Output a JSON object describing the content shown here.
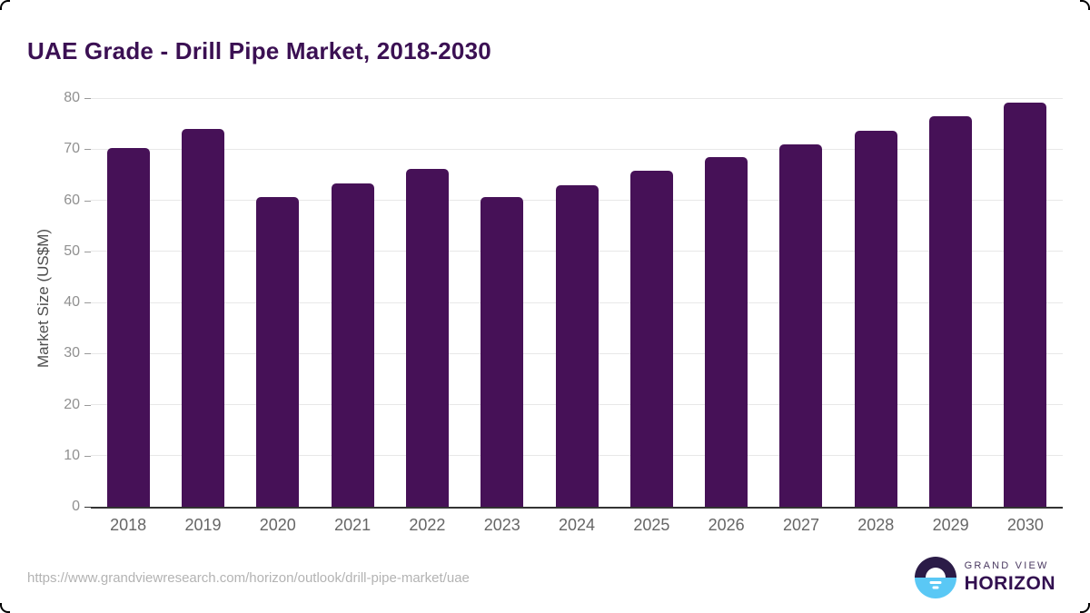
{
  "header": {
    "title": "UAE Grade - Drill Pipe Market, 2018-2030"
  },
  "chart_data": {
    "type": "bar",
    "title": "UAE Grade - Drill Pipe Market, 2018-2030",
    "categories": [
      "2018",
      "2019",
      "2020",
      "2021",
      "2022",
      "2023",
      "2024",
      "2025",
      "2026",
      "2027",
      "2028",
      "2029",
      "2030"
    ],
    "values": [
      70.2,
      74.0,
      60.6,
      63.3,
      66.1,
      60.6,
      63.0,
      65.7,
      68.4,
      71.0,
      73.6,
      76.4,
      79.2
    ],
    "xlabel": "",
    "ylabel": "Market Size (US$M)",
    "ylim": [
      0,
      80
    ],
    "yticks": [
      0,
      10,
      20,
      30,
      40,
      50,
      60,
      70,
      80
    ],
    "grid": "horizontal",
    "legend": "none",
    "bar_color": "#461157"
  },
  "footer": {
    "url": "https://www.grandviewresearch.com/horizon/outlook/drill-pipe-market/uae",
    "logo": {
      "line1": "GRAND VIEW",
      "line2": "HORIZON"
    }
  },
  "colors": {
    "title": "#3b1053",
    "bar": "#461157",
    "axis_title": "#4d4d4d",
    "tick_label": "#909090",
    "tick_mark": "#999999",
    "gridline": "#e8e8e8",
    "baseline": "#333333",
    "xlabel": "#666666",
    "url": "#b3b3b3",
    "logo_dark": "#2b1b47",
    "logo_blue": "#5ac8f5"
  }
}
